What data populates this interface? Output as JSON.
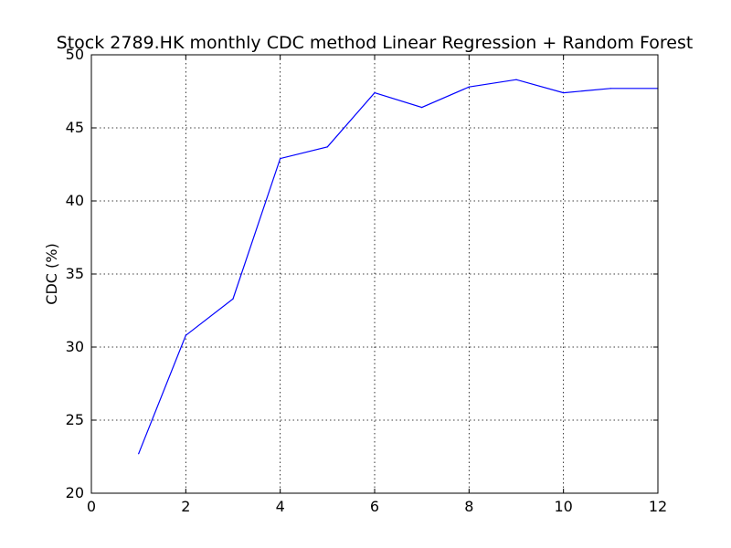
{
  "chart_data": {
    "type": "line",
    "title": "Stock 2789.HK monthly CDC method Linear Regression + Random Forest",
    "xlabel": "",
    "ylabel": "CDC (%)",
    "xlim": [
      0,
      12
    ],
    "ylim": [
      20,
      50
    ],
    "xticks": [
      0,
      2,
      4,
      6,
      8,
      10,
      12
    ],
    "yticks": [
      20,
      25,
      30,
      35,
      40,
      45,
      50
    ],
    "grid": true,
    "series": [
      {
        "color": "#0000ff",
        "x": [
          1,
          2,
          3,
          4,
          5,
          6,
          7,
          8,
          9,
          10,
          11,
          12
        ],
        "y": [
          22.7,
          30.8,
          33.3,
          42.9,
          43.7,
          47.4,
          46.4,
          47.8,
          48.3,
          47.4,
          47.7,
          47.7
        ]
      }
    ]
  }
}
